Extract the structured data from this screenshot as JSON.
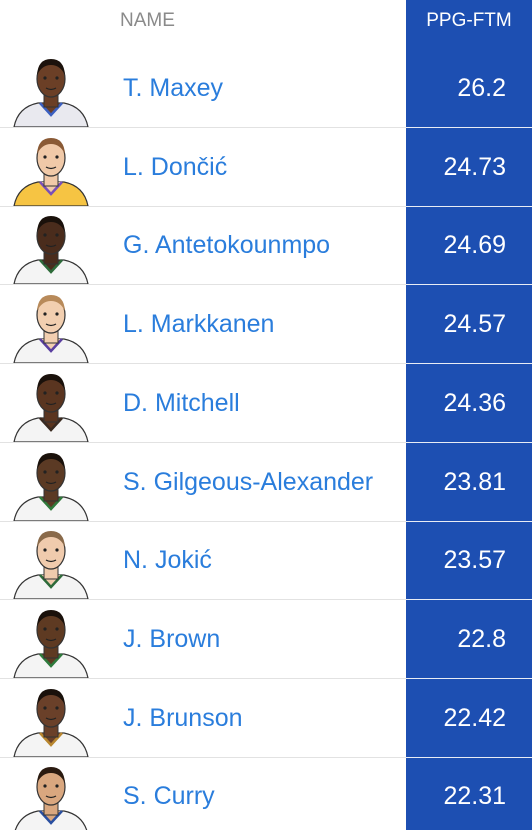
{
  "table": {
    "columns": [
      "NAME",
      "PPG-FTM"
    ],
    "rows": [
      [
        "T. Maxey",
        26.2
      ],
      [
        "L. Dončić",
        24.73
      ],
      [
        "G. Antetokounmpo",
        24.69
      ],
      [
        "L. Markkanen",
        24.57
      ],
      [
        "D. Mitchell",
        24.36
      ],
      [
        "S. Gilgeous-Alexander",
        23.81
      ],
      [
        "N. Jokić",
        23.57
      ],
      [
        "J. Brown",
        22.8
      ],
      [
        "J. Brunson",
        22.42
      ],
      [
        "S. Curry",
        22.31
      ]
    ]
  }
}
